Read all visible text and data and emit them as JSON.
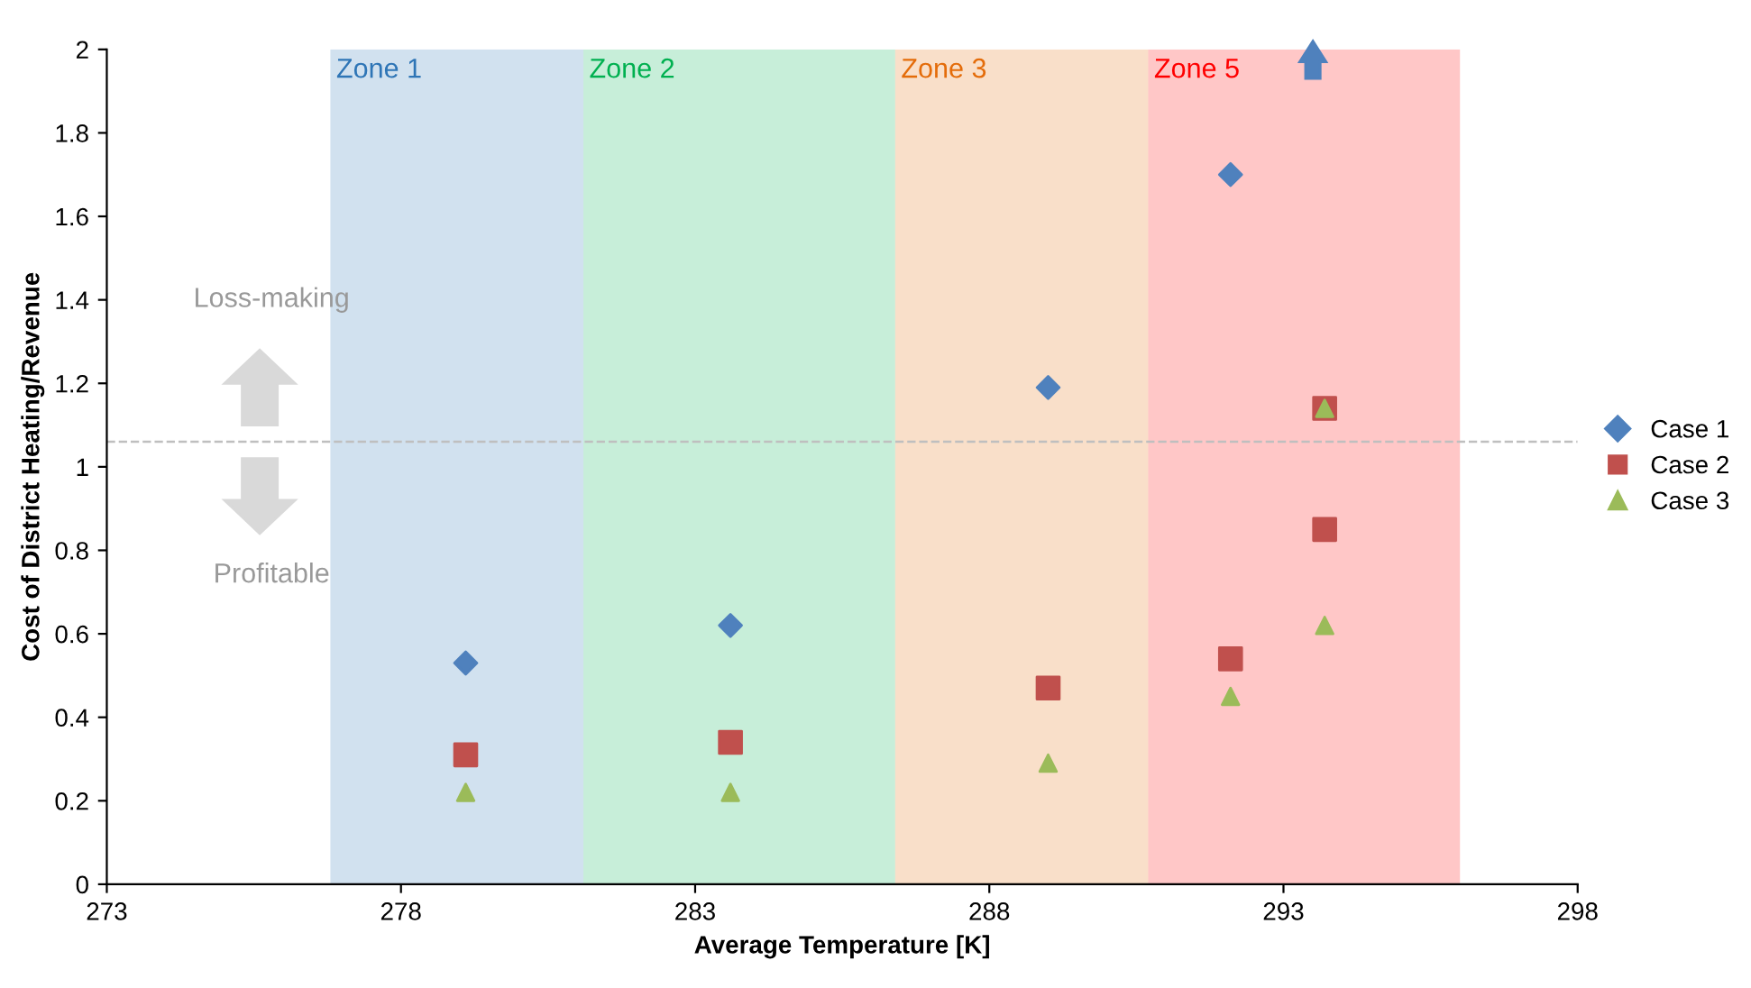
{
  "chart_data": {
    "type": "scatter",
    "xlabel": "Average Temperature [K]",
    "ylabel": "Cost of District Heating/Revenue",
    "xlim": [
      273,
      298
    ],
    "xticks": [
      273,
      278,
      283,
      288,
      293,
      298
    ],
    "ylim": [
      0,
      2
    ],
    "yticks": [
      0,
      0.2,
      0.4,
      0.6,
      0.8,
      1,
      1.2,
      1.4,
      1.6,
      1.8,
      2
    ],
    "grid": false,
    "legend": "right",
    "series": [
      {
        "name": "Case 1",
        "color": "#4f81bd",
        "marker": "diamond",
        "x": [
          279.1,
          283.6,
          289.0,
          292.1
        ],
        "values": [
          0.53,
          0.62,
          1.19,
          1.7
        ]
      },
      {
        "name": "Case 2",
        "color": "#c0504d",
        "marker": "square",
        "x": [
          279.1,
          283.6,
          289.0,
          292.1,
          293.7,
          293.7
        ],
        "values": [
          0.31,
          0.34,
          0.47,
          0.54,
          0.85,
          1.14
        ]
      },
      {
        "name": "Case 3",
        "color": "#9bbb59",
        "marker": "triangle",
        "x": [
          279.1,
          283.6,
          289.0,
          292.1,
          293.7,
          293.7
        ],
        "values": [
          0.22,
          0.22,
          0.29,
          0.45,
          0.62,
          1.14
        ]
      }
    ],
    "bands": [
      {
        "axis": "x",
        "from": 276.8,
        "to": 281.1,
        "label": "Zone 1",
        "color": "#2e75b6"
      },
      {
        "axis": "x",
        "from": 281.1,
        "to": 286.4,
        "label": "Zone 2",
        "color": "#00b050"
      },
      {
        "axis": "x",
        "from": 286.4,
        "to": 290.7,
        "label": "Zone 3",
        "color": "#e46c0a"
      },
      {
        "axis": "x",
        "from": 290.7,
        "to": 296.0,
        "label": "Zone 5",
        "color": "#ff0000"
      }
    ],
    "ref_lines": [
      {
        "axis": "y",
        "value": 1.06,
        "color": "#bfbfbf",
        "line_style": "dashed"
      }
    ],
    "annotations": [
      "Loss-making",
      "Profitable"
    ]
  }
}
